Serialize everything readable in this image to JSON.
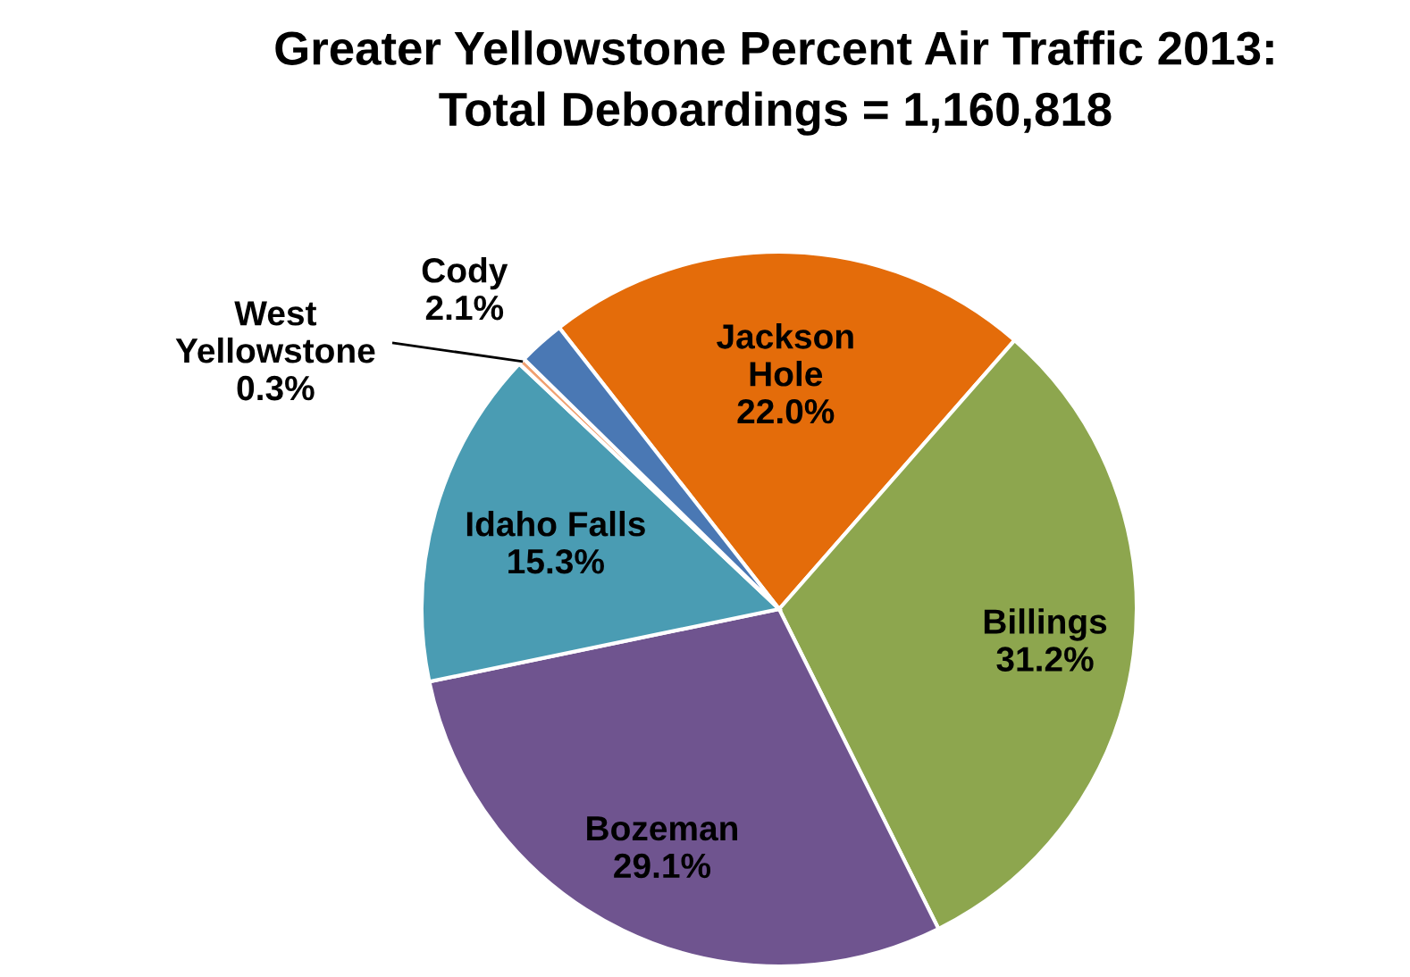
{
  "chart_data": {
    "type": "pie",
    "title": "Greater Yellowstone Percent Air Traffic 2013:\nTotal Deboardings = 1,160,818",
    "categories": [
      "Jackson\nHole",
      "Billings",
      "Bozeman",
      "Idaho Falls",
      "West\nYellowstone",
      "Cody"
    ],
    "values": [
      22.0,
      31.2,
      29.1,
      15.3,
      0.3,
      2.1
    ],
    "colors": [
      "#e46c0a",
      "#8da64e",
      "#6f548f",
      "#4a9cb3",
      "#f0a070",
      "#4a78b4"
    ],
    "value_labels": [
      "22.0%",
      "31.2%",
      "29.1%",
      "15.3%",
      "0.3%",
      "2.1%"
    ]
  }
}
